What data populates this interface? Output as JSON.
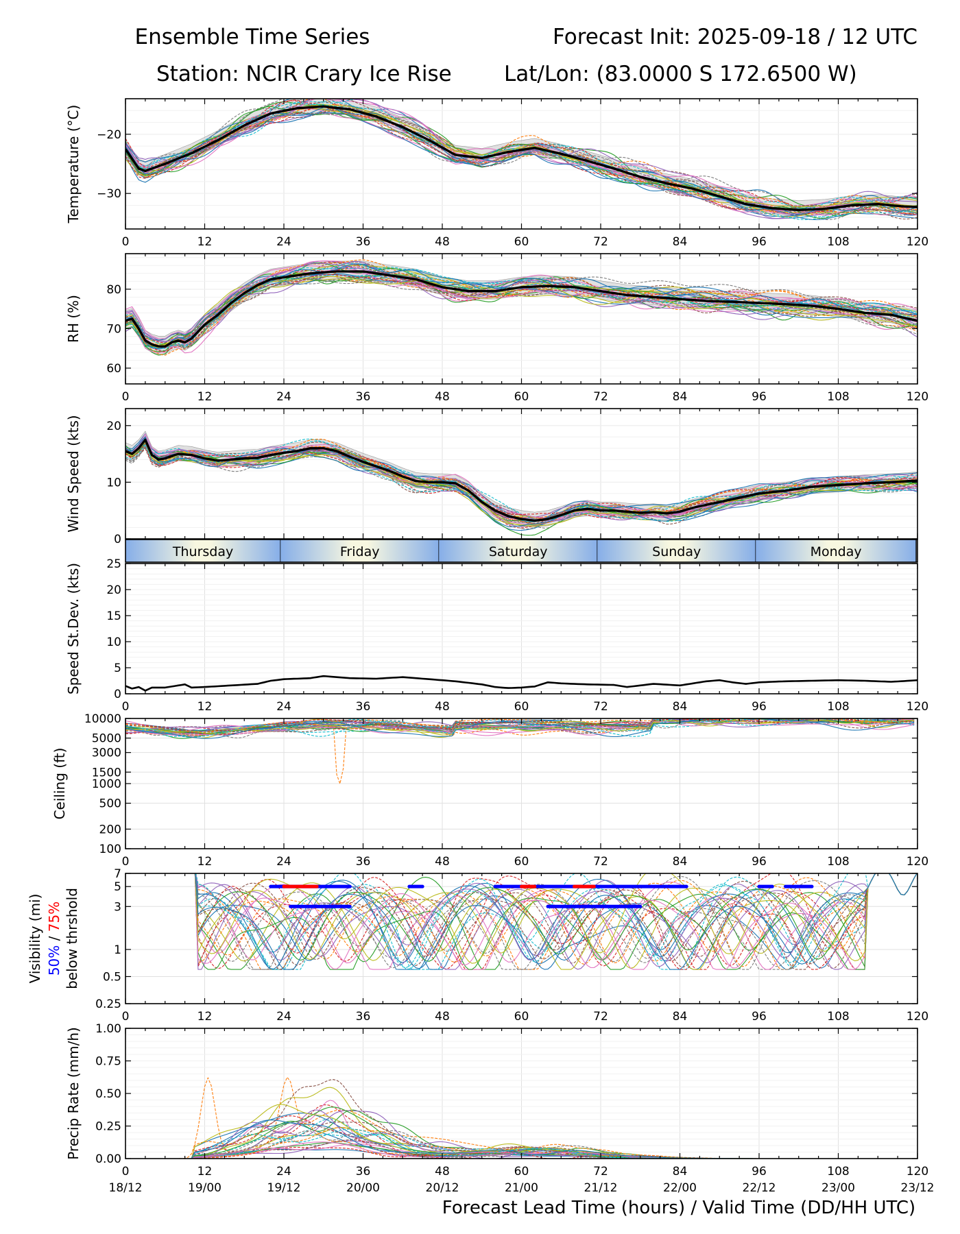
{
  "header": {
    "title_left": "Ensemble Time Series",
    "title_right": "Forecast Init: 2025-09-18 / 12 UTC",
    "station": "Station: NCIR Crary Ice Rise",
    "latlon": "Lat/Lon: (83.0000 S 172.6500 W)"
  },
  "colors": {
    "members": [
      "#1f77b4",
      "#ff7f0e",
      "#2ca02c",
      "#d62728",
      "#9467bd",
      "#8c564b",
      "#e377c2",
      "#7f7f7f",
      "#bcbd22",
      "#17becf"
    ],
    "mean": "#000000",
    "spread": "#c8c8c8",
    "grid": "#e0e0e0",
    "vis50": "#0000ff",
    "vis75": "#ff0000"
  },
  "chart_data": {
    "type": "line",
    "x_label": "Forecast Lead Time (hours) / Valid Time (DD/HH UTC)",
    "x_range": [
      0,
      120
    ],
    "lead_ticks": [
      "0",
      "12",
      "24",
      "36",
      "48",
      "60",
      "72",
      "84",
      "96",
      "108",
      "120"
    ],
    "valid_ticks": [
      "18/12",
      "19/00",
      "19/12",
      "20/00",
      "20/12",
      "21/00",
      "21/12",
      "22/00",
      "22/12",
      "23/00",
      "23/12"
    ],
    "day_band": [
      {
        "label": "Thursday",
        "start": 0,
        "end": 23.5
      },
      {
        "label": "Friday",
        "start": 23.5,
        "end": 47.5
      },
      {
        "label": "Saturday",
        "start": 47.5,
        "end": 71.5
      },
      {
        "label": "Sunday",
        "start": 71.5,
        "end": 95.5
      },
      {
        "label": "Monday",
        "start": 95.5,
        "end": 119.8
      }
    ],
    "panels": [
      {
        "id": "temperature",
        "ylabel": "Temperature (°C)",
        "scale": "linear",
        "ylim": [
          -36.0,
          -14.0
        ],
        "yticks": [
          -20,
          -30
        ],
        "ytick_labels": [
          "−20",
          "−30"
        ],
        "x": [
          0,
          2,
          3,
          6,
          10,
          14,
          18,
          22,
          26,
          30,
          34,
          38,
          42,
          46,
          50,
          54,
          58,
          62,
          66,
          70,
          74,
          78,
          82,
          86,
          90,
          94,
          98,
          102,
          106,
          110,
          114,
          118,
          120
        ],
        "mean": [
          -22.5,
          -25.8,
          -26.2,
          -25.0,
          -23.2,
          -21.0,
          -18.5,
          -16.5,
          -15.6,
          -15.3,
          -15.8,
          -17.0,
          -18.8,
          -21.0,
          -23.5,
          -24.0,
          -23.0,
          -22.3,
          -23.3,
          -24.5,
          -25.8,
          -27.2,
          -28.3,
          -29.2,
          -30.5,
          -31.8,
          -32.5,
          -32.8,
          -32.6,
          -32.0,
          -31.8,
          -32.2,
          -32.3
        ],
        "spread_lo": 1.0,
        "spread_hi": 1.6,
        "member_noise": 2.0,
        "members": 31,
        "has_mean": true
      },
      {
        "id": "rh",
        "ylabel": "RH (%)",
        "scale": "linear",
        "ylim": [
          56,
          89
        ],
        "yticks": [
          60,
          70,
          80
        ],
        "ytick_labels": [
          "60",
          "70",
          "80"
        ],
        "x": [
          0,
          1,
          2,
          3,
          4,
          5,
          6,
          7,
          8,
          9,
          10,
          12,
          14,
          16,
          18,
          20,
          22,
          24,
          28,
          32,
          36,
          40,
          44,
          48,
          52,
          56,
          60,
          64,
          68,
          72,
          76,
          80,
          84,
          88,
          92,
          96,
          100,
          104,
          108,
          112,
          116,
          120
        ],
        "mean": [
          72,
          72.5,
          70,
          67,
          66,
          65.5,
          65.5,
          66.5,
          67,
          66.5,
          67.5,
          71,
          73.5,
          76.5,
          79,
          81,
          82.5,
          83,
          84,
          84.5,
          84.5,
          83.5,
          82.5,
          80.5,
          79.5,
          79.5,
          80.5,
          80.8,
          80.5,
          79.5,
          78.5,
          78,
          77.5,
          77,
          76.8,
          76.5,
          76.2,
          75.8,
          75,
          74,
          73.5,
          72
        ],
        "spread_lo": 2.0,
        "spread_hi": 2.6,
        "member_noise": 3.0,
        "members": 31,
        "has_mean": true
      },
      {
        "id": "wind",
        "ylabel": "Wind Speed (kts)",
        "scale": "linear",
        "ylim": [
          0,
          23
        ],
        "yticks": [
          0,
          10,
          20
        ],
        "ytick_labels": [
          "0",
          "10",
          "20"
        ],
        "x": [
          0,
          1,
          2,
          3,
          4,
          5,
          6,
          8,
          10,
          12,
          14,
          16,
          18,
          20,
          22,
          24,
          26,
          28,
          30,
          32,
          34,
          36,
          38,
          40,
          42,
          44,
          46,
          48,
          50,
          52,
          54,
          56,
          58,
          60,
          62,
          64,
          66,
          68,
          70,
          72,
          74,
          76,
          78,
          80,
          82,
          84,
          86,
          88,
          90,
          92,
          94,
          96,
          100,
          104,
          108,
          112,
          116,
          120
        ],
        "mean": [
          15.5,
          15,
          16,
          17.5,
          14.8,
          14,
          14.2,
          15,
          14.8,
          14.2,
          13.8,
          14,
          14.2,
          14.3,
          14.8,
          15.2,
          15.5,
          16,
          16,
          15.5,
          14.5,
          13.6,
          12.8,
          12,
          11,
          10.2,
          10,
          10,
          9.8,
          8.5,
          6.5,
          5,
          4,
          3.5,
          3.2,
          3.5,
          4.2,
          5,
          5.3,
          5,
          5,
          4.8,
          4.6,
          4.7,
          4.5,
          4.8,
          5.5,
          6,
          6.5,
          7,
          7.5,
          8,
          8.5,
          9.2,
          9.5,
          9.8,
          10,
          10.3
        ],
        "spread_lo": 1.2,
        "spread_hi": 1.5,
        "member_noise": 1.7,
        "members": 31,
        "has_mean": true
      },
      {
        "id": "speed_sd",
        "ylabel": "Speed St.Dev. (kts)",
        "scale": "linear",
        "ylim": [
          0,
          25
        ],
        "yticks": [
          0,
          5,
          10,
          15,
          20,
          25
        ],
        "ytick_labels": [
          "0",
          "5",
          "10",
          "15",
          "20",
          "25"
        ],
        "x": [
          0,
          1,
          2,
          3,
          4,
          6,
          8,
          9,
          10,
          12,
          16,
          20,
          22,
          24,
          28,
          30,
          34,
          38,
          42,
          46,
          50,
          54,
          56,
          58,
          60,
          62,
          64,
          66,
          70,
          74,
          76,
          78,
          80,
          84,
          88,
          90,
          92,
          94,
          96,
          100,
          104,
          108,
          112,
          116,
          120
        ],
        "mean": [
          1.5,
          1.0,
          1.3,
          0.6,
          1.2,
          1.2,
          1.6,
          1.8,
          1.2,
          1.3,
          1.6,
          1.9,
          2.5,
          2.8,
          3.0,
          3.4,
          3.0,
          2.9,
          3.2,
          2.8,
          2.4,
          1.8,
          1.3,
          1.1,
          1.2,
          1.4,
          2.2,
          2.0,
          1.8,
          1.7,
          1.3,
          1.6,
          1.9,
          1.6,
          2.4,
          2.6,
          2.2,
          1.9,
          2.2,
          2.4,
          2.5,
          2.6,
          2.5,
          2.3,
          2.6
        ],
        "members": 0,
        "has_mean": true
      },
      {
        "id": "ceiling",
        "ylabel": "Ceiling (ft)",
        "scale": "log",
        "ylim": [
          100,
          10000
        ],
        "yticks": [
          100,
          200,
          500,
          1000,
          1500,
          3000,
          5000,
          10000
        ],
        "ytick_labels": [
          "100",
          "200",
          "500",
          "1000",
          "1500",
          "3000",
          "5000",
          "10000"
        ],
        "members": 31,
        "has_mean": false
      },
      {
        "id": "visibility",
        "ylabel": "Visibility (mi)",
        "ylabel_50": "50%",
        "ylabel_sep": " / ",
        "ylabel_75": "75%",
        "ylabel_3": "below thrshold",
        "scale": "log",
        "ylim": [
          0.25,
          7
        ],
        "yticks": [
          0.25,
          0.5,
          1,
          3,
          5,
          7
        ],
        "ytick_labels": [
          "0.25",
          "0.5",
          "1",
          "3",
          "5",
          "7"
        ],
        "members": 31,
        "has_mean": false,
        "threshold_50_at5": [
          [
            22,
            34
          ],
          [
            43,
            45
          ],
          [
            56,
            85
          ],
          [
            96,
            98
          ],
          [
            100,
            104
          ]
        ],
        "threshold_75_at5": [
          [
            24,
            29
          ],
          [
            60,
            62
          ],
          [
            68,
            71
          ]
        ],
        "threshold_50_at3": [
          [
            25,
            34
          ],
          [
            64,
            78
          ]
        ]
      },
      {
        "id": "precip",
        "ylabel": "Precip Rate (mm/h)",
        "scale": "linear",
        "ylim": [
          0,
          1.0
        ],
        "yticks": [
          0,
          0.25,
          0.5,
          0.75,
          1.0
        ],
        "ytick_labels": [
          "0.00",
          "0.25",
          "0.50",
          "0.75",
          "1.00"
        ],
        "members": 31,
        "has_mean": false
      }
    ]
  }
}
